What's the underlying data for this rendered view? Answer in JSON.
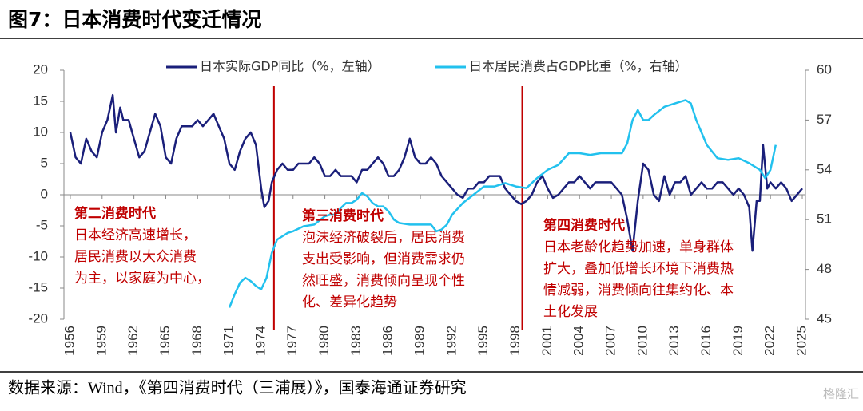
{
  "chart_data": {
    "type": "line",
    "title": "图7：日本消费时代变迁情况",
    "source": "数据来源：Wind，《第四消费时代（三浦展）》，国泰海通证券研究",
    "watermark": "格隆汇",
    "legend_position": "top",
    "xlim": [
      1955.4,
      2025.3
    ],
    "xticks": [
      1956,
      1959,
      1962,
      1965,
      1968,
      1971,
      1974,
      1977,
      1980,
      1983,
      1986,
      1989,
      1992,
      1995,
      1998,
      2001,
      2004,
      2007,
      2010,
      2013,
      2016,
      2019,
      2022,
      2025
    ],
    "ylim": [
      -20,
      20
    ],
    "yticks": [
      20,
      15,
      10,
      5,
      0,
      -5,
      -10,
      -15,
      -20
    ],
    "y2lim": [
      45,
      60
    ],
    "y2ticks": [
      60,
      57,
      54,
      51,
      48,
      45
    ],
    "dividers": [
      1975.2,
      1998.6
    ],
    "divider_color": "#c00000",
    "series": [
      {
        "name": "日本实际GDP同比（%，左轴）",
        "color": "#1a1f7a",
        "axis": "y",
        "x": [
          1956,
          1956.5,
          1957,
          1957.5,
          1958,
          1958.5,
          1959,
          1959.5,
          1960,
          1960.3,
          1960.7,
          1961,
          1961.5,
          1962,
          1962.5,
          1963,
          1963.5,
          1964,
          1964.5,
          1965,
          1965.5,
          1966,
          1966.5,
          1967,
          1967.5,
          1968,
          1968.5,
          1969,
          1969.5,
          1970,
          1970.5,
          1971,
          1971.5,
          1972,
          1972.5,
          1973,
          1973.5,
          1974,
          1974.3,
          1974.7,
          1975,
          1975.5,
          1976,
          1976.5,
          1977,
          1977.5,
          1978,
          1978.5,
          1979,
          1979.5,
          1980,
          1980.5,
          1981,
          1981.5,
          1982,
          1982.5,
          1983,
          1983.5,
          1984,
          1984.5,
          1985,
          1985.5,
          1986,
          1986.5,
          1987,
          1987.5,
          1988,
          1988.5,
          1989,
          1989.5,
          1990,
          1990.5,
          1991,
          1991.5,
          1992,
          1992.5,
          1993,
          1993.5,
          1994,
          1994.5,
          1995,
          1995.5,
          1996,
          1996.5,
          1997,
          1997.5,
          1998,
          1998.5,
          1999,
          1999.5,
          2000,
          2000.5,
          2001,
          2001.5,
          2002,
          2002.5,
          2003,
          2003.5,
          2004,
          2004.5,
          2005,
          2005.5,
          2006,
          2006.5,
          2007,
          2007.5,
          2008,
          2008.5,
          2009,
          2009.5,
          2010,
          2010.5,
          2011,
          2011.5,
          2012,
          2012.5,
          2013,
          2013.5,
          2014,
          2014.5,
          2015,
          2015.5,
          2016,
          2016.5,
          2017,
          2017.5,
          2018,
          2018.5,
          2019,
          2019.5,
          2020,
          2020.3,
          2020.7,
          2021,
          2021.3,
          2021.7,
          2022,
          2022.5,
          2023,
          2023.5,
          2024,
          2024.5,
          2025
        ],
        "values": [
          10,
          6,
          5,
          9,
          7,
          6,
          10,
          12,
          16,
          10,
          14,
          12,
          12,
          9,
          6,
          7,
          10,
          13,
          11,
          6,
          5,
          9,
          11,
          11,
          11,
          12,
          11,
          12,
          13,
          11,
          9,
          5,
          4,
          7,
          9,
          10,
          8,
          1,
          -2,
          -1,
          2,
          4,
          5,
          4,
          4,
          5,
          5,
          5,
          6,
          5,
          3,
          3,
          4,
          3,
          3,
          3,
          2,
          4,
          4,
          5,
          6,
          5,
          3,
          3,
          4,
          6,
          9,
          6,
          5,
          5,
          6,
          5,
          3,
          2,
          1,
          0,
          -0.5,
          1,
          1,
          2,
          2,
          3,
          3,
          3,
          1,
          0,
          -1,
          -1.5,
          -1,
          0,
          2,
          3,
          1,
          -0.5,
          0,
          1,
          2,
          2,
          3,
          2,
          1,
          2,
          2,
          2,
          2,
          1,
          0,
          -4,
          -9,
          -1,
          5,
          4,
          0,
          -1,
          3,
          0,
          2,
          2,
          3,
          0,
          1,
          2,
          1,
          1,
          2,
          2,
          1,
          0,
          1,
          0,
          -2,
          -9,
          -1,
          -1,
          8,
          1,
          2,
          1,
          2,
          1,
          -1,
          0,
          1
        ]
      },
      {
        "name": "日本居民消费占GDP比重（%，右轴）",
        "color": "#22c1ee",
        "axis": "y2",
        "x": [
          1971,
          1971.5,
          1972,
          1972.5,
          1973,
          1973.5,
          1974,
          1974.5,
          1975,
          1975.5,
          1976,
          1976.5,
          1977,
          1978,
          1979,
          1980,
          1980.5,
          1981,
          1981.5,
          1982,
          1982.5,
          1983,
          1983.5,
          1984,
          1984.5,
          1985,
          1985.5,
          1986,
          1986.5,
          1987,
          1988,
          1989,
          1990,
          1990.5,
          1991,
          1991.5,
          1992,
          1993,
          1994,
          1995,
          1996,
          1997,
          1998,
          1999,
          2000,
          2001,
          2002,
          2003,
          2004,
          2005,
          2006,
          2007,
          2008,
          2008.5,
          2009,
          2009.5,
          2010,
          2010.5,
          2011,
          2012,
          2013,
          2014,
          2014.5,
          2015,
          2016,
          2017,
          2018,
          2019,
          2020,
          2021,
          2021.5,
          2022,
          2022.5
        ],
        "values": [
          45.7,
          46.5,
          47.2,
          47.5,
          47.3,
          47,
          46.8,
          47.5,
          49,
          49.8,
          50,
          50.2,
          50.3,
          50.6,
          50.7,
          51.2,
          51.3,
          51.3,
          51.7,
          52,
          52,
          52.2,
          52.6,
          52.4,
          52,
          51.8,
          51.8,
          51.5,
          51,
          50.8,
          50.7,
          50.7,
          50.7,
          50.3,
          50.4,
          50.7,
          51.3,
          52,
          52.5,
          53,
          53,
          53.2,
          53,
          52.9,
          53.5,
          54,
          54.3,
          55,
          55,
          54.9,
          55,
          55,
          55,
          55.6,
          57,
          57.6,
          57,
          57,
          57.3,
          57.8,
          58,
          58.2,
          58,
          57,
          55.5,
          54.7,
          54.6,
          54.7,
          54.4,
          54,
          53.5,
          54,
          55.5
        ]
      }
    ],
    "annotations": [
      {
        "title": "第二消费时代",
        "lines": [
          "日本经济高速增长，",
          "居民消费以大众消费",
          "为主，以家庭为中心，"
        ]
      },
      {
        "title": "第三消费时代",
        "lines": [
          "泡沫经济破裂后，居民消费",
          "支出受影响，但消费需求仍",
          "然旺盛，消费倾向呈现个性",
          "化、差异化趋势"
        ]
      },
      {
        "title": "第四消费时代",
        "lines": [
          "日本老龄化趋势加速，单身群体",
          "扩大，叠加低增长环境下消费热",
          "情减弱，消费倾向往集约化、本",
          "土化发展"
        ]
      }
    ]
  }
}
